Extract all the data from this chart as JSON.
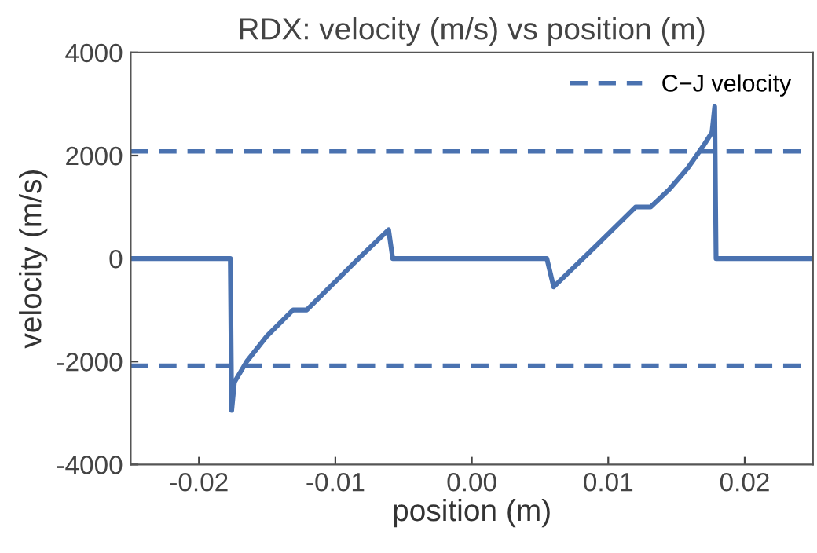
{
  "chart_data": {
    "type": "line",
    "title": "RDX: velocity (m/s) vs position (m)",
    "xlabel": "position (m)",
    "ylabel": "velocity (m/s)",
    "series": [
      {
        "color": "#4a72b0",
        "x": [
          -0.025,
          -0.0177,
          -0.0176,
          -0.0174,
          -0.0165,
          -0.015,
          -0.0131,
          -0.0121,
          -0.0083,
          -0.0061,
          -0.0058,
          0.0055,
          0.006,
          0.009,
          0.012,
          0.0131,
          0.0145,
          0.0158,
          0.017,
          0.0176,
          0.0178,
          0.0179,
          0.025
        ],
        "values": [
          0,
          0,
          -2950,
          -2400,
          -2000,
          -1500,
          -1000,
          -1000,
          0,
          560,
          0,
          0,
          -550,
          220,
          1000,
          1000,
          1350,
          1750,
          2200,
          2450,
          2950,
          0,
          0
        ]
      }
    ],
    "xlim": [
      -0.025,
      0.025
    ],
    "xticks": [
      -0.02,
      -0.01,
      {
        "value": 0,
        "label": "0.00"
      },
      0.01,
      0.02
    ],
    "ylim": [
      -4000,
      4000
    ],
    "yticks": [
      -4000,
      -2000,
      0,
      2000,
      4000
    ],
    "ref_lines": [
      {
        "axis": "y",
        "value": 2080,
        "label": "C−J velocity",
        "color": "#4a72b0",
        "line_style": "dashed"
      },
      {
        "axis": "y",
        "value": -2080,
        "color": "#4a72b0",
        "line_style": "dashed"
      }
    ],
    "legend": "top right",
    "grid": false,
    "marker": "none",
    "line_style": "solid"
  }
}
